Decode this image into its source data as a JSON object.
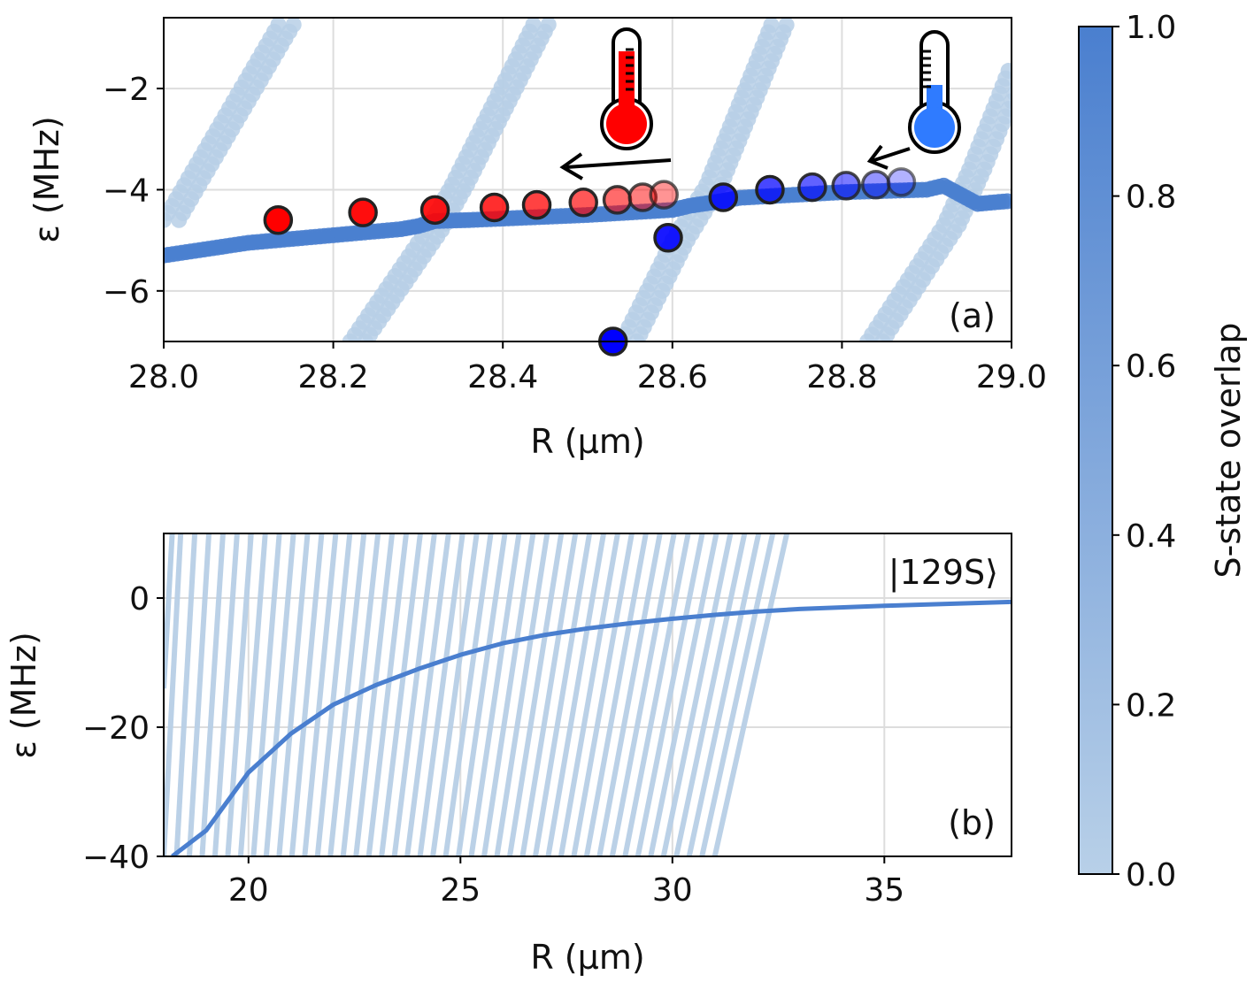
{
  "chart_data": [
    {
      "panel_label": "(a)",
      "type": "scatter",
      "xlabel": "R (μm)",
      "ylabel": "ε (MHz)",
      "xlim": [
        28.0,
        29.0
      ],
      "ylim": [
        -7.0,
        -0.6
      ],
      "xticks": [
        28.0,
        28.2,
        28.4,
        28.6,
        28.8,
        29.0
      ],
      "xtick_labels": [
        "28.0",
        "28.2",
        "28.4",
        "28.6",
        "28.8",
        "29.0"
      ],
      "yticks": [
        -2,
        -4,
        -6
      ],
      "ytick_labels": [
        "−2",
        "−4",
        "−6"
      ],
      "grid": true,
      "series": [
        {
          "name": "S-state branch",
          "overlap": 0.9,
          "marker": "dot",
          "points": [
            [
              28.0,
              -5.3
            ],
            [
              28.1,
              -5.05
            ],
            [
              28.2,
              -4.9
            ],
            [
              28.28,
              -4.78
            ],
            [
              28.3,
              -4.72
            ],
            [
              28.32,
              -4.62
            ],
            [
              28.36,
              -4.6
            ],
            [
              28.5,
              -4.5
            ],
            [
              28.6,
              -4.4
            ],
            [
              28.62,
              -4.32
            ],
            [
              28.66,
              -4.22
            ],
            [
              28.68,
              -4.16
            ],
            [
              28.8,
              -4.05
            ],
            [
              28.9,
              -4.0
            ],
            [
              28.92,
              -3.92
            ],
            [
              28.96,
              -4.28
            ],
            [
              29.0,
              -4.22
            ]
          ]
        },
        {
          "name": "crossing states",
          "overlap": 0.15,
          "marker": "dot",
          "lines": [
            [
              [
                28.0,
                -4.6
              ],
              [
                28.14,
                -0.6
              ]
            ],
            [
              [
                28.22,
                -7.0
              ],
              [
                28.31,
                -4.8
              ],
              [
                28.34,
                -3.9
              ],
              [
                28.44,
                -0.6
              ]
            ],
            [
              [
                28.54,
                -7.0
              ],
              [
                28.6,
                -5.0
              ],
              [
                28.64,
                -3.9
              ],
              [
                28.72,
                -0.6
              ]
            ],
            [
              [
                28.83,
                -7.0
              ],
              [
                28.92,
                -4.7
              ],
              [
                28.95,
                -3.6
              ],
              [
                29.0,
                -1.5
              ]
            ]
          ]
        },
        {
          "name": "hot sequence",
          "color": "#ff0000",
          "x": [
            28.135,
            28.235,
            28.32,
            28.39,
            28.44,
            28.495,
            28.535,
            28.565,
            28.59
          ],
          "y": [
            -4.6,
            -4.45,
            -4.4,
            -4.35,
            -4.3,
            -4.25,
            -4.2,
            -4.15,
            -4.1
          ],
          "alpha": [
            1.0,
            0.95,
            0.9,
            0.82,
            0.74,
            0.66,
            0.58,
            0.5,
            0.42
          ]
        },
        {
          "name": "cold sequence",
          "color": "#0000ff",
          "x": [
            28.53,
            28.595,
            28.66,
            28.715,
            28.765,
            28.805,
            28.84,
            28.87
          ],
          "y": [
            -7.0,
            -4.95,
            -4.15,
            -4.0,
            -3.95,
            -3.92,
            -3.9,
            -3.85
          ],
          "alpha": [
            1.0,
            0.9,
            0.82,
            0.72,
            0.62,
            0.52,
            0.42,
            0.3
          ]
        }
      ],
      "annotations": [
        {
          "text": "hot-thermometer-icon",
          "color": "#ff0000"
        },
        {
          "text": "cold-thermometer-icon",
          "color": "#2f7bff"
        }
      ]
    },
    {
      "panel_label": "(b)",
      "type": "line",
      "xlabel": "R (μm)",
      "ylabel": "ε (MHz)",
      "xlim": [
        18.0,
        38.0
      ],
      "ylim": [
        -40,
        10
      ],
      "xticks": [
        20,
        25,
        30,
        35
      ],
      "xtick_labels": [
        "20",
        "25",
        "30",
        "35"
      ],
      "yticks": [
        0,
        -20,
        -40
      ],
      "ytick_labels": [
        "0",
        "−20",
        "−40"
      ],
      "grid": true,
      "state_label": "|129S⟩",
      "crossing_lines": {
        "count": 44,
        "x_at_bottom_start": 18.0,
        "x_at_bottom_end": 31.0,
        "x_at_top_start": 18.4,
        "x_at_top_end": 32.7,
        "overlap": 0.15
      },
      "s_state_curve": {
        "x": [
          18.2,
          19.0,
          20.0,
          21.0,
          22.0,
          23.0,
          24.0,
          25.0,
          26.0,
          27.0,
          28.0,
          29.0,
          30.0,
          31.0,
          32.0,
          33.0,
          35.0,
          38.0
        ],
        "y": [
          -40,
          -36,
          -27,
          -21,
          -16.5,
          -13.5,
          -11,
          -8.8,
          -7.0,
          -5.7,
          -4.7,
          -3.9,
          -3.2,
          -2.6,
          -2.1,
          -1.7,
          -1.2,
          -0.6
        ],
        "overlap": 0.9
      }
    }
  ],
  "colorbar": {
    "label": "S-state overlap",
    "ticks": [
      "0.0",
      "0.2",
      "0.4",
      "0.6",
      "0.8",
      "1.0"
    ],
    "range": [
      0.0,
      1.0
    ],
    "color_low": "#b8d0e8",
    "color_high": "#4a7fcf"
  },
  "colors": {
    "blue_full": "#4a7fcf",
    "blue_light": "#b7cfe6",
    "hot": "#ff0000",
    "cold": "#0000ff",
    "grid": "#dddddd"
  }
}
